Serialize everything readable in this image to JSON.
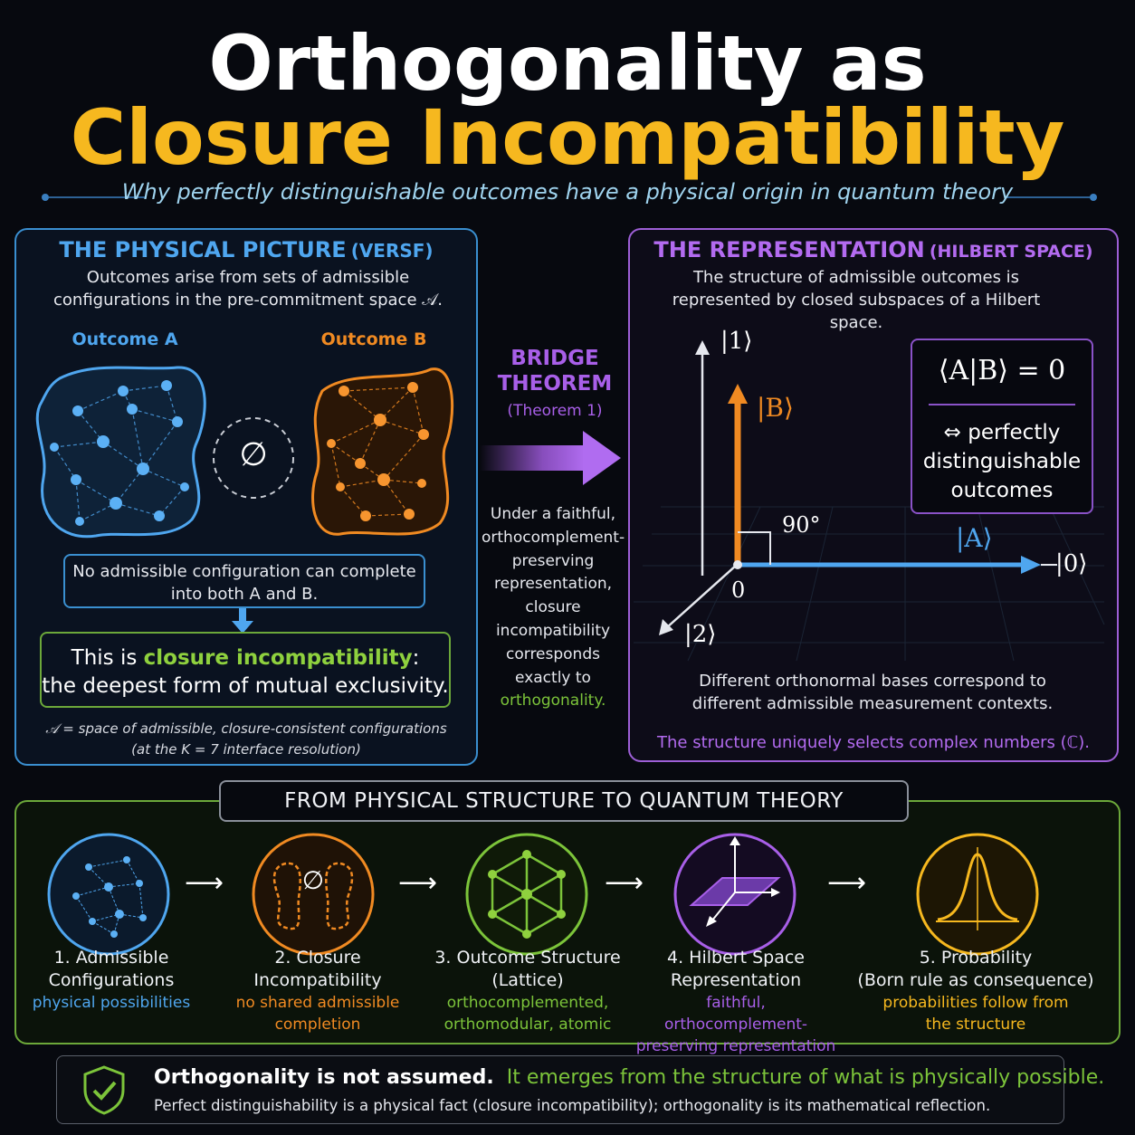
{
  "header": {
    "title_line1": "Orthogonality as",
    "title_line2": "Closure Incompatibility",
    "subtitle": "Why perfectly distinguishable outcomes have a physical origin in quantum theory"
  },
  "left_panel": {
    "heading": "THE PHYSICAL PICTURE",
    "heading_suffix": "(VERSF)",
    "intro": "Outcomes arise from sets of admissible configurations in the pre-commitment space 𝒜.",
    "outcome_a": "Outcome A",
    "outcome_b": "Outcome B",
    "empty_set": "∅",
    "no_completion": "No admissible configuration can complete into both  A  and  B.",
    "closure_prefix": "This is ",
    "closure_highlight": "closure incompatibility",
    "closure_suffix": ":",
    "closure_line2": "the deepest form of mutual exclusivity.",
    "footnote1": "𝒜 = space of admissible, closure-consistent configurations",
    "footnote2": "(at the K = 7 interface resolution)"
  },
  "bridge": {
    "title_line1": "BRIDGE",
    "title_line2": "THEOREM",
    "subtitle": "(Theorem 1)",
    "text_lines": [
      "Under a faithful,",
      "orthocomplement-",
      "preserving",
      "representation,",
      "closure",
      "incompatibility",
      "corresponds",
      "exactly to"
    ],
    "highlight": "orthogonality."
  },
  "right_panel": {
    "heading": "THE REPRESENTATION",
    "heading_suffix": "(HILBERT SPACE)",
    "intro": "The structure of admissible outcomes is represented by closed subspaces of a Hilbert space.",
    "axis_1": "|1⟩",
    "axis_0": "|0⟩",
    "axis_2": "|2⟩",
    "vec_b": "|B⟩",
    "vec_a": "|A⟩",
    "origin": "0",
    "angle": "90°",
    "inner_product": "⟨A|B⟩ = 0",
    "equiv_lines": [
      "⇔ perfectly",
      "distinguishable",
      "outcomes"
    ],
    "bases_note": "Different orthonormal bases correspond to different admissible measurement contexts.",
    "complex_note": "The structure uniquely selects complex numbers (ℂ)."
  },
  "bottom_panel": {
    "heading": "FROM PHYSICAL STRUCTURE TO QUANTUM THEORY",
    "arrow": "⟶",
    "steps": [
      {
        "title1": "1. Admissible",
        "title2": "Configurations",
        "sub1": "physical possibilities",
        "sub2": "",
        "color": "#4fa6ef"
      },
      {
        "title1": "2. Closure",
        "title2": "Incompatibility",
        "sub1": "no shared admissible",
        "sub2": "completion",
        "color": "#f08a22"
      },
      {
        "title1": "3. Outcome Structure",
        "title2": "(Lattice)",
        "sub1": "orthocomplemented,",
        "sub2": "orthomodular, atomic",
        "color": "#7cc43a"
      },
      {
        "title1": "4. Hilbert Space",
        "title2": "Representation",
        "sub1": "faithful, orthocomplement-",
        "sub2": "preserving representation",
        "color": "#a85fe8"
      },
      {
        "title1": "5. Probability",
        "title2": "(Born rule as consequence)",
        "sub1": "probabilities follow from",
        "sub2": "the structure",
        "color": "#f6b81f"
      }
    ]
  },
  "footer": {
    "bold_text": "Orthogonality is not assumed.",
    "green_text": "It emerges from the structure of what is physically possible.",
    "detail": "Perfect distinguishability is a physical fact (closure incompatibility); orthogonality is its mathematical reflection."
  },
  "colors": {
    "blue": "#4fa6ef",
    "orange": "#f08a22",
    "green": "#7cc43a",
    "purple": "#a85fe8",
    "gold": "#f6b81f"
  }
}
